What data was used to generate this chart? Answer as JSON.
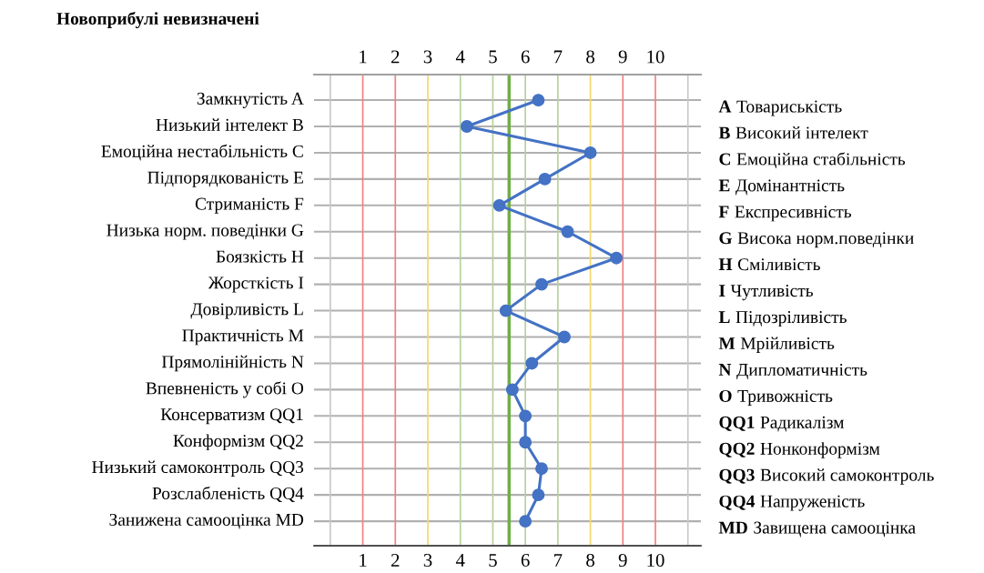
{
  "chart_data": {
    "type": "line",
    "orientation": "horizontal",
    "title": "Новоприбулі невизначені",
    "categories": [
      "Замкнутість A",
      "Низький інтелект B",
      "Емоційна нестабільність C",
      "Підпорядкованість E",
      "Стриманість F",
      "Низька норм. поведінки G",
      "Боязкість H",
      "Жорсткість I",
      "Довірливість L",
      "Практичність M",
      "Прямолінійність N",
      "Впевненість у собі O",
      "Консерватизм QQ1",
      "Конформізм QQ2",
      "Низький самоконтроль QQ3",
      "Розслабленість QQ4",
      "Занижена самооцінка MD"
    ],
    "y2_categories": [
      "A Товариськість",
      "B Високий інтелект",
      "C Емоційна стабільність",
      "E Домінантність",
      "F Експресивність",
      "G Висока норм.поведінки",
      "H Сміливість",
      "I Чутливість",
      "L Підозріливість",
      "M Мрійливість",
      "N Дипломатичність",
      "O Тривожність",
      "QQ1 Радикалізм",
      "QQ2 Нонконформізм",
      "QQ3 Високий самоконтроль",
      "QQ4 Напруженість",
      "MD Завищена самооцінка"
    ],
    "series": [
      {
        "color": "#4472c4",
        "values": [
          6.4,
          4.2,
          8.0,
          6.6,
          5.2,
          7.3,
          8.8,
          6.5,
          5.4,
          7.2,
          6.2,
          5.6,
          6.0,
          6.0,
          6.5,
          6.4,
          6.0
        ]
      }
    ],
    "marker": "circle",
    "line_style": "solid",
    "grid": "y",
    "xlim": [
      -0.5,
      11.4
    ],
    "xticks": [
      1,
      2,
      3,
      4,
      5,
      6,
      7,
      8,
      9,
      10
    ],
    "x2lim": [
      -0.5,
      11.4
    ],
    "x2ticks": [
      1,
      2,
      3,
      4,
      5,
      6,
      7,
      8,
      9,
      10
    ],
    "ref_lines": [
      {
        "axis": "x",
        "value": 0,
        "color": "#c8c8c8"
      },
      {
        "axis": "x",
        "value": 1,
        "color": "#f08080"
      },
      {
        "axis": "x",
        "value": 2,
        "color": "#f08080"
      },
      {
        "axis": "x",
        "value": 3,
        "color": "#f5d76e"
      },
      {
        "axis": "x",
        "value": 4,
        "color": "#b5d19a"
      },
      {
        "axis": "x",
        "value": 5,
        "color": "#b5d19a"
      },
      {
        "axis": "x",
        "value": 6,
        "color": "#b5d19a"
      },
      {
        "axis": "x",
        "value": 7,
        "color": "#b5d19a"
      },
      {
        "axis": "x",
        "value": 8,
        "color": "#f5d76e"
      },
      {
        "axis": "x",
        "value": 9,
        "color": "#f08080"
      },
      {
        "axis": "x",
        "value": 10,
        "color": "#f08080"
      },
      {
        "axis": "x",
        "value": 11,
        "color": "#c8c8c8"
      },
      {
        "axis": "x",
        "value": 5.5,
        "color": "#70ad47"
      }
    ]
  }
}
